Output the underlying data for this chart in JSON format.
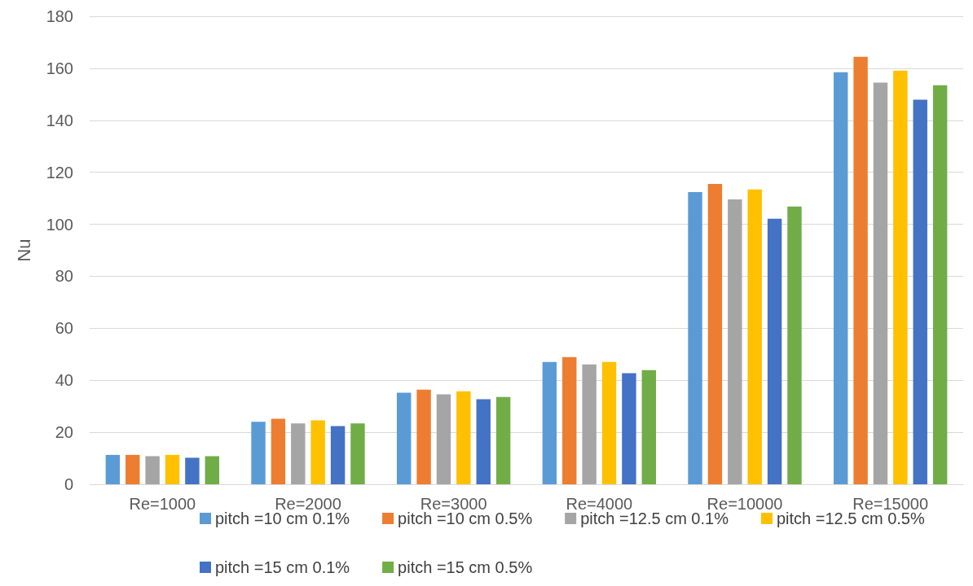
{
  "chart_data": {
    "type": "bar",
    "ylabel": "Nu",
    "categories": [
      "Re=1000",
      "Re=2000",
      "Re=3000",
      "Re=4000",
      "Re=10000",
      "Re=15000"
    ],
    "series": [
      {
        "name": "pitch =10 cm 0.1%",
        "color": "#5b9bd5",
        "values": [
          11.3,
          24.0,
          35.2,
          47.0,
          112.4,
          158.5
        ]
      },
      {
        "name": "pitch =10 cm 0.5%",
        "color": "#ed7d31",
        "values": [
          11.3,
          25.2,
          36.4,
          48.9,
          115.5,
          164.4
        ]
      },
      {
        "name": "pitch =12.5 cm 0.1%",
        "color": "#a5a5a5",
        "values": [
          10.8,
          23.4,
          34.6,
          46.1,
          109.6,
          154.5
        ]
      },
      {
        "name": "pitch =12.5 cm 0.5%",
        "color": "#ffc000",
        "values": [
          11.3,
          24.6,
          35.8,
          47.0,
          113.4,
          159.1
        ]
      },
      {
        "name": "pitch =15 cm 0.1%",
        "color": "#4472c4",
        "values": [
          10.2,
          22.4,
          32.7,
          42.7,
          102.1,
          147.9
        ]
      },
      {
        "name": "pitch =15 cm 0.5%",
        "color": "#70ad47",
        "values": [
          10.8,
          23.4,
          33.6,
          43.9,
          106.8,
          153.5
        ]
      }
    ],
    "ylim": [
      0,
      180
    ],
    "yticks": [
      0,
      20,
      40,
      60,
      80,
      100,
      120,
      140,
      160,
      180
    ],
    "grid": "y",
    "legend": "bottom"
  }
}
